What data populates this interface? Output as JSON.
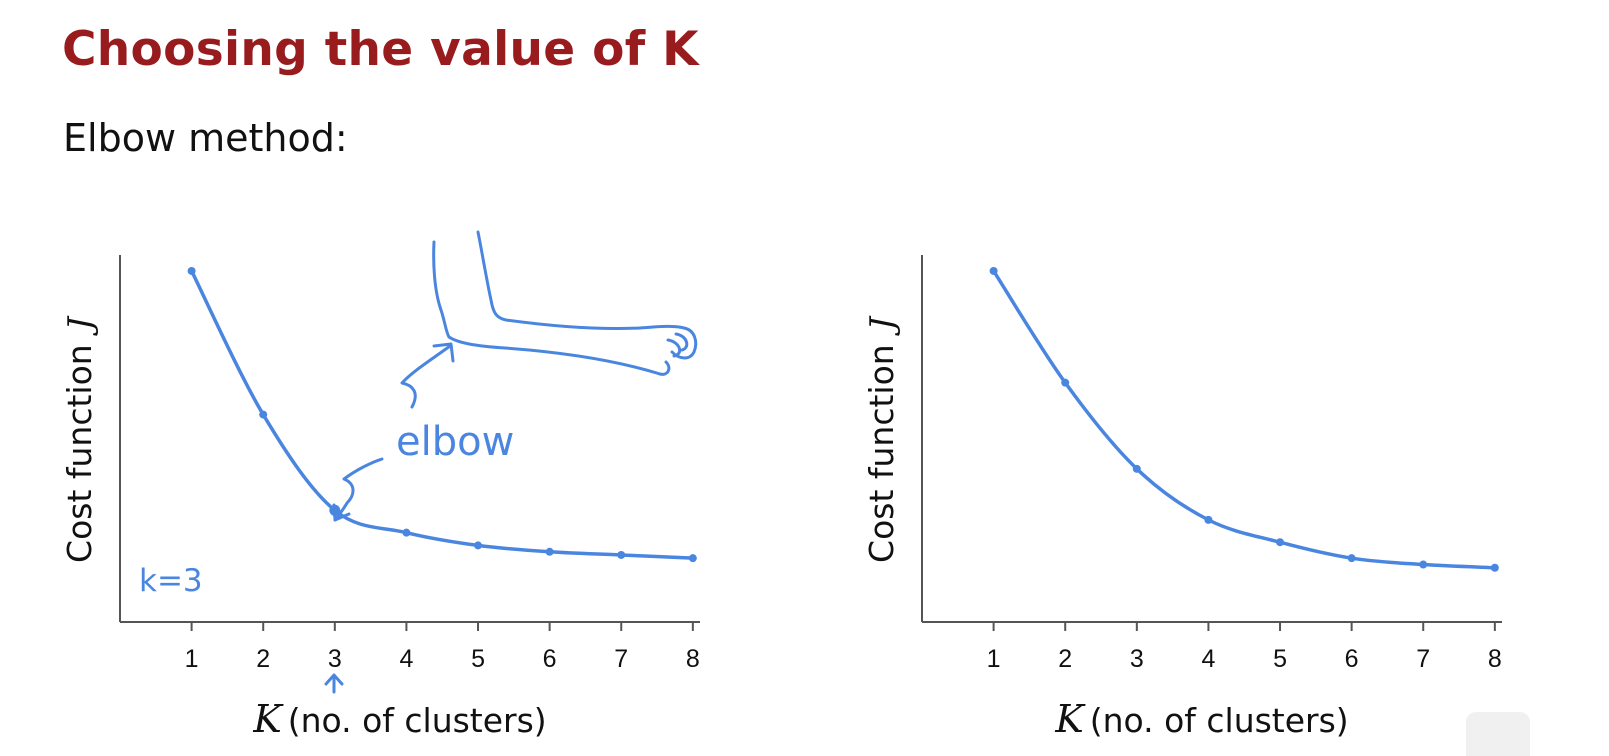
{
  "title": "Choosing the value of K",
  "subtitle": "Elbow method:",
  "annotations": {
    "elbow_label": "elbow",
    "k_choice": "k=3"
  },
  "colors": {
    "title": "#981b1e",
    "curve": "#4a86e0",
    "axis": "#555555"
  },
  "chart_data": [
    {
      "type": "line",
      "title": "",
      "xlabel_symbol": "K",
      "xlabel_text": "(no. of clusters)",
      "ylabel_text": "Cost function",
      "ylabel_symbol": "J",
      "x": [
        1,
        2,
        3,
        4,
        5,
        6,
        7,
        8
      ],
      "xticks": [
        "1",
        "2",
        "3",
        "4",
        "5",
        "6",
        "7",
        "8"
      ],
      "series": [
        {
          "values": [
            1.0,
            0.55,
            0.25,
            0.18,
            0.14,
            0.12,
            0.11,
            0.1
          ]
        }
      ],
      "xlim": [
        0,
        8.1
      ],
      "ylim": [
        -0.1,
        1.05
      ],
      "grid": false,
      "annotation_point": 3
    },
    {
      "type": "line",
      "title": "",
      "xlabel_symbol": "K",
      "xlabel_text": "(no. of clusters)",
      "ylabel_text": "Cost function",
      "ylabel_symbol": "J",
      "x": [
        1,
        2,
        3,
        4,
        5,
        6,
        7,
        8
      ],
      "xticks": [
        "1",
        "2",
        "3",
        "4",
        "5",
        "6",
        "7",
        "8"
      ],
      "series": [
        {
          "values": [
            1.0,
            0.65,
            0.38,
            0.22,
            0.15,
            0.1,
            0.08,
            0.07
          ]
        }
      ],
      "xlim": [
        0,
        8.1
      ],
      "ylim": [
        -0.1,
        1.05
      ],
      "grid": false
    }
  ]
}
